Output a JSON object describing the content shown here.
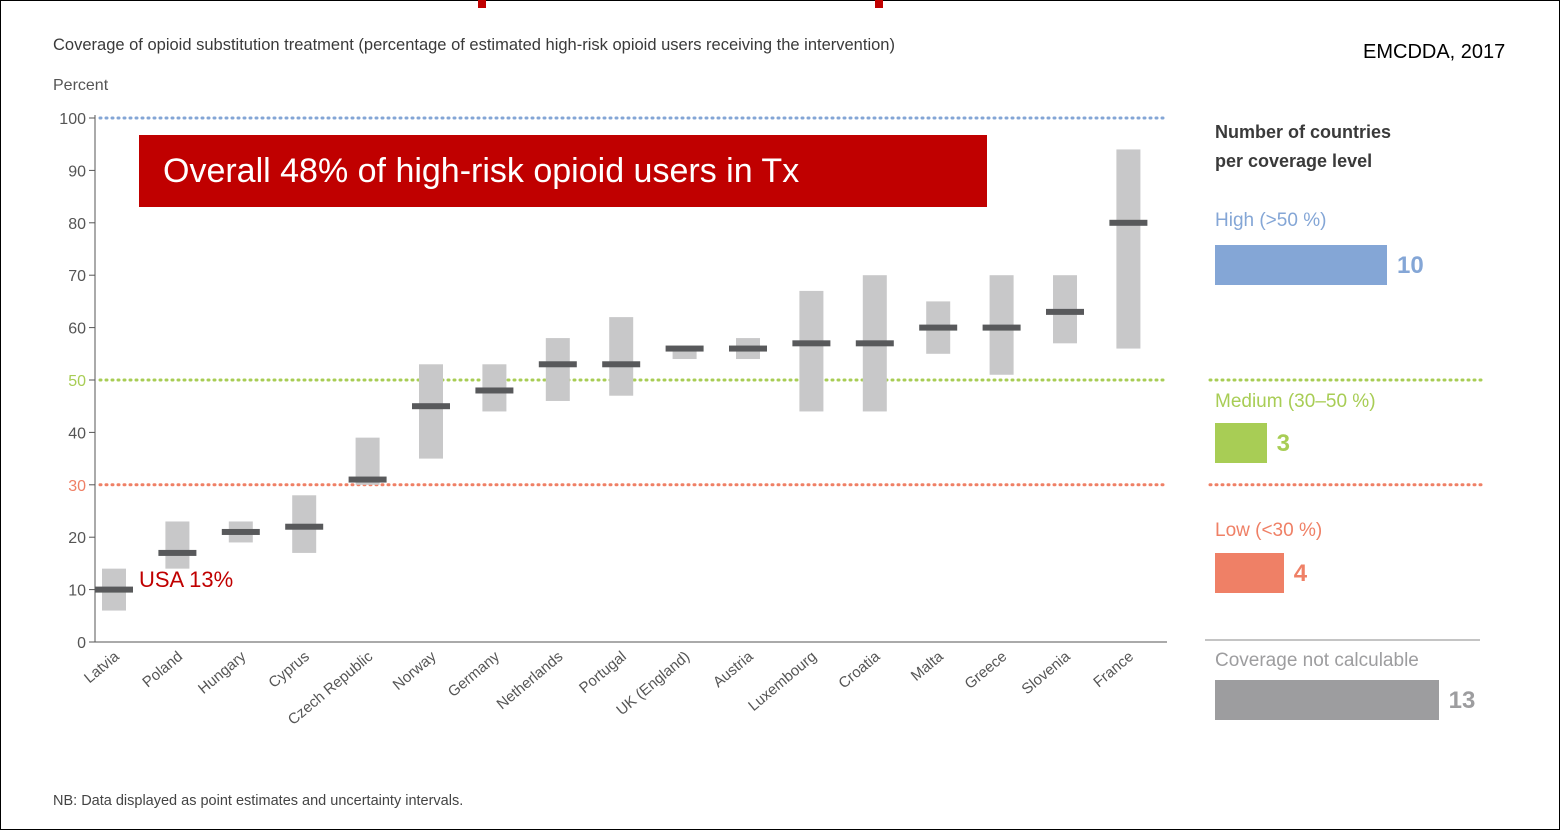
{
  "source": "EMCDDA, 2017",
  "callout": "Overall 48% of high-risk opioid users in Tx",
  "usa_note": "USA 13%",
  "footnote": "NB: Data displayed as point estimates and uncertainty intervals.",
  "colors": {
    "accent_red": "#c00000",
    "range_bar": "#c8c8c9",
    "point_estimate": "#58595b",
    "high": "#84a6d6",
    "medium": "#a8cd55",
    "low": "#ef8066",
    "not_calculable": "#9d9d9f"
  },
  "side_panel": {
    "heading_line1": "Number of countries",
    "heading_line2": "per coverage level",
    "levels": [
      {
        "label": "High (>50 %)",
        "count": "10",
        "color": "#84a6d6",
        "value": 10
      },
      {
        "label": "Medium (30–50 %)",
        "count": "3",
        "color": "#a8cd55",
        "value": 3
      },
      {
        "label": "Low (<30 %)",
        "count": "4",
        "color": "#ef8066",
        "value": 4
      },
      {
        "label": "Coverage not calculable",
        "count": "13",
        "color": "#9d9d9f",
        "value": 13
      }
    ]
  },
  "chart_data": {
    "type": "range_point",
    "title": "Coverage of opioid substitution treatment (percentage of estimated high-risk opioid users receiving the intervention)",
    "ylabel": "Percent",
    "ylim": [
      0,
      100
    ],
    "yticks": [
      0,
      10,
      20,
      30,
      40,
      50,
      60,
      70,
      80,
      90,
      100
    ],
    "reference_lines": [
      {
        "value": 100,
        "color": "#84a6d6"
      },
      {
        "value": 50,
        "color": "#a8cd55"
      },
      {
        "value": 30,
        "color": "#ef8066"
      }
    ],
    "categories": [
      "Latvia",
      "Poland",
      "Hungary",
      "Cyprus",
      "Czech Republic",
      "Norway",
      "Germany",
      "Netherlands",
      "Portugal",
      "UK (England)",
      "Austria",
      "Luxembourg",
      "Croatia",
      "Malta",
      "Greece",
      "Slovenia",
      "France"
    ],
    "point": [
      10,
      17,
      21,
      22,
      31,
      45,
      48,
      53,
      53,
      56,
      56,
      57,
      57,
      60,
      60,
      63,
      80
    ],
    "low": [
      6,
      14,
      19,
      17,
      30,
      35,
      44,
      46,
      47,
      54,
      54,
      44,
      44,
      55,
      51,
      57,
      56
    ],
    "high": [
      14,
      23,
      23,
      28,
      39,
      53,
      53,
      58,
      62,
      56,
      58,
      67,
      70,
      65,
      70,
      70,
      94
    ]
  }
}
